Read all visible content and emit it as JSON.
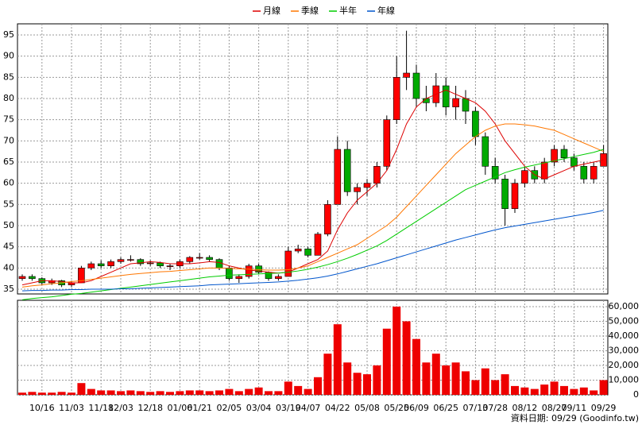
{
  "chart_data": [
    {
      "type": "candlestick",
      "up_color": "#ff0000",
      "down_color": "#00aa00",
      "open": [
        37.5,
        38,
        37.5,
        36.5,
        37,
        36,
        36.5,
        40,
        41,
        40.5,
        41.5,
        42,
        42,
        41,
        41.2,
        40.5,
        40.5,
        41.5,
        42.5,
        42.5,
        42,
        40,
        37.5,
        38,
        40.5,
        39,
        37.5,
        38,
        44,
        44.5,
        43,
        48,
        55,
        68,
        58,
        59,
        60,
        64,
        75,
        85,
        86,
        80,
        79,
        83,
        78,
        80,
        77,
        71,
        64,
        61,
        54,
        60,
        63,
        61,
        65,
        68,
        66,
        64,
        61,
        64
      ],
      "high": [
        38.5,
        38.5,
        37.8,
        37.5,
        37.2,
        37,
        40.5,
        41.5,
        41.8,
        42,
        42.5,
        43,
        42.3,
        41.8,
        41.5,
        41,
        42,
        42.8,
        43.5,
        43,
        42.3,
        40.5,
        38.5,
        41,
        41,
        39.2,
        38.5,
        45,
        45.5,
        45,
        48.5,
        56,
        71,
        70,
        60,
        61,
        65,
        76,
        90,
        96,
        88,
        83,
        86,
        85,
        83,
        82,
        78,
        72,
        66,
        62,
        61,
        64,
        64,
        66,
        69,
        69,
        67,
        65,
        65,
        69
      ],
      "low": [
        37,
        37,
        36,
        36,
        35.5,
        35.5,
        36.5,
        39.5,
        40,
        40,
        41,
        41.5,
        40.5,
        40.5,
        40,
        39.5,
        40,
        41,
        42,
        41.5,
        39.5,
        37,
        36.5,
        37.5,
        38.5,
        37,
        37,
        38,
        43.5,
        42.5,
        43,
        47.5,
        55,
        57,
        55,
        57,
        59,
        63,
        74,
        82,
        78,
        77,
        78,
        76,
        75,
        74,
        69,
        62,
        60,
        50,
        53,
        59,
        60,
        60,
        64,
        65,
        63,
        60,
        60,
        64
      ],
      "close": [
        38,
        37.5,
        36.5,
        37,
        36,
        36.5,
        40,
        41,
        40.5,
        41.5,
        42,
        42,
        41,
        41.2,
        40.5,
        40.5,
        41.5,
        42.5,
        42.5,
        42,
        40,
        37.5,
        38,
        40.5,
        39,
        37.5,
        38,
        44,
        44.5,
        43,
        48,
        55,
        68,
        58,
        59,
        60,
        64,
        75,
        85,
        86,
        80,
        79,
        83,
        78,
        80,
        77,
        71,
        64,
        61,
        54,
        60,
        63,
        61,
        65,
        68,
        66,
        64,
        61,
        64,
        67
      ],
      "series": [
        {
          "name": "月線",
          "color": "#dd0000",
          "values": [
            36,
            36.5,
            37,
            37,
            36.8,
            36.5,
            36.5,
            37,
            38,
            39,
            40,
            41,
            41.2,
            41.5,
            41.3,
            41,
            41,
            41,
            41.2,
            41.5,
            41.3,
            40.5,
            40,
            39.5,
            39.3,
            39,
            38.8,
            39,
            40,
            41,
            42,
            44,
            49,
            53,
            56,
            58,
            60,
            63,
            68,
            74,
            78,
            80,
            81,
            82,
            81,
            80,
            79,
            77,
            74,
            70,
            67,
            64,
            62,
            61,
            62,
            63,
            64,
            64.5,
            65,
            65.5
          ]
        },
        {
          "name": "季線",
          "color": "#ff7700",
          "values": [
            35.5,
            35.8,
            36,
            36.3,
            36.5,
            36.8,
            37,
            37.3,
            37.6,
            37.9,
            38.2,
            38.5,
            38.7,
            38.9,
            39.1,
            39.2,
            39.4,
            39.6,
            39.8,
            40,
            40,
            39.9,
            39.8,
            39.7,
            39.6,
            39.5,
            39.5,
            39.6,
            40,
            40.5,
            41.5,
            42.5,
            43.5,
            44.5,
            45.5,
            47,
            48.5,
            50,
            52,
            54.5,
            57,
            59.5,
            62,
            64.5,
            67,
            69,
            71,
            72.5,
            73.5,
            74,
            74,
            73.8,
            73.5,
            73,
            72.5,
            71.5,
            70.5,
            69.5,
            68.5,
            67.5
          ]
        },
        {
          "name": "半年",
          "color": "#00cc00",
          "values": [
            32.5,
            32.8,
            33,
            33.2,
            33.5,
            33.8,
            34,
            34.3,
            34.6,
            34.9,
            35.2,
            35.5,
            35.8,
            36.1,
            36.4,
            36.7,
            37,
            37.3,
            37.6,
            37.9,
            38.1,
            38.3,
            38.4,
            38.5,
            38.6,
            38.7,
            38.8,
            39,
            39.3,
            39.7,
            40.2,
            40.8,
            41.5,
            42.3,
            43.2,
            44.2,
            45.2,
            46.5,
            48,
            49.5,
            51,
            52.5,
            54,
            55.5,
            57,
            58.5,
            59.5,
            60.5,
            61.5,
            62.5,
            63.2,
            63.8,
            64.3,
            64.8,
            65.3,
            65.8,
            66.3,
            66.8,
            67.3,
            68
          ]
        },
        {
          "name": "年線",
          "color": "#0055cc",
          "values": [
            34.6,
            34.7,
            34.7,
            34.8,
            34.8,
            34.9,
            34.9,
            35,
            35,
            35,
            35.1,
            35.1,
            35.2,
            35.3,
            35.4,
            35.5,
            35.6,
            35.7,
            35.8,
            36,
            36.1,
            36.2,
            36.3,
            36.4,
            36.5,
            36.6,
            36.7,
            36.9,
            37.1,
            37.4,
            37.7,
            38.1,
            38.6,
            39.2,
            39.8,
            40.4,
            41,
            41.7,
            42.4,
            43.1,
            43.8,
            44.5,
            45.2,
            45.9,
            46.6,
            47.2,
            47.8,
            48.4,
            49,
            49.5,
            49.9,
            50.3,
            50.7,
            51.1,
            51.5,
            51.9,
            52.3,
            52.7,
            53.1,
            53.6
          ]
        }
      ],
      "ylim": [
        33.875,
        97.625
      ],
      "yticks": [
        35,
        40,
        45,
        50,
        55,
        60,
        65,
        70,
        75,
        80,
        85,
        90,
        95
      ],
      "grid": true
    },
    {
      "type": "bar",
      "color": "#ee0000",
      "categories": [
        null,
        null,
        "10/16",
        null,
        null,
        "11/03",
        null,
        null,
        "11/18",
        null,
        "12/03",
        null,
        null,
        "12/18",
        null,
        null,
        "01/06",
        null,
        "01/21",
        null,
        null,
        "02/05",
        null,
        null,
        "03/04",
        null,
        null,
        "03/19",
        null,
        "04/07",
        null,
        null,
        "04/22",
        null,
        null,
        "05/08",
        null,
        null,
        "05/25",
        null,
        "06/09",
        null,
        null,
        "06/25",
        null,
        null,
        "07/13",
        null,
        "07/28",
        null,
        null,
        "08/12",
        null,
        null,
        "08/27",
        null,
        "09/11",
        null,
        null,
        "09/29"
      ],
      "values": [
        1500,
        2000,
        1500,
        1500,
        2000,
        1500,
        8000,
        4000,
        3000,
        3000,
        2500,
        3000,
        2500,
        2000,
        2500,
        2000,
        2500,
        3000,
        3000,
        2500,
        3000,
        4000,
        2500,
        4000,
        5000,
        2500,
        2500,
        9000,
        6000,
        4000,
        12000,
        28000,
        48000,
        22000,
        15000,
        14000,
        20000,
        45000,
        60000,
        50000,
        38000,
        22000,
        28000,
        20000,
        22000,
        16000,
        10000,
        18000,
        10000,
        14000,
        6000,
        5000,
        4000,
        7000,
        9000,
        6000,
        4000,
        5000,
        3000,
        10000
      ],
      "ylim": [
        0,
        64300
      ],
      "yticks": [
        {
          "value": 60000,
          "label": "60,000"
        },
        {
          "value": 50000,
          "label": "50,000"
        },
        {
          "value": 40000,
          "label": "40,000"
        },
        {
          "value": 30000,
          "label": "30,000"
        },
        {
          "value": 20000,
          "label": "20,000"
        },
        {
          "value": 10000,
          "label": "10,000"
        },
        0
      ],
      "grid": true
    }
  ],
  "footer": "資料日期: 09/29  (Goodinfo.tw)"
}
